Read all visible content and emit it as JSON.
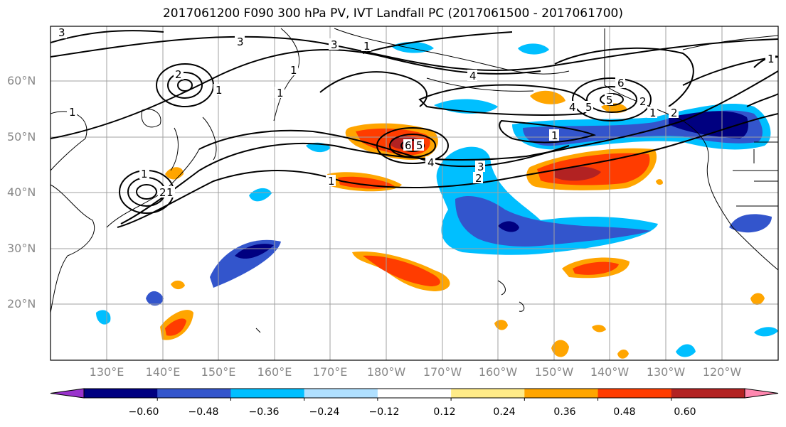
{
  "title": "2017061200 F090 300 hPa PV, IVT Landfall PC (2017061500 - 2017061700)",
  "latitude_labels": [
    "60°N",
    "50°N",
    "40°N",
    "30°N",
    "20°N"
  ],
  "longitude_labels": [
    "130°E",
    "140°E",
    "150°E",
    "160°E",
    "170°E",
    "180°W",
    "170°W",
    "160°W",
    "150°W",
    "140°W",
    "130°W",
    "120°W"
  ],
  "colorbar": {
    "tick_labels": [
      "−0.60",
      "−0.48",
      "−0.36",
      "−0.24",
      "−0.12",
      "0.12",
      "0.24",
      "0.36",
      "0.48",
      "0.60"
    ],
    "colors": [
      "#9933cc",
      "#000080",
      "#3355cc",
      "#00bfff",
      "#b0e0ff",
      "#ffffff",
      "#ffeb88",
      "#ffa500",
      "#ff3c00",
      "#b22222",
      "#ff88b0"
    ]
  },
  "contour_labels": [
    "3",
    "3",
    "1",
    "1",
    "1",
    "1",
    "2",
    "3",
    "4",
    "5",
    "6",
    "1",
    "1",
    "2",
    "1",
    "4",
    "5",
    "6",
    "1",
    "2",
    "1",
    "4",
    "5",
    "3",
    "2",
    "1",
    "2",
    "1"
  ]
}
